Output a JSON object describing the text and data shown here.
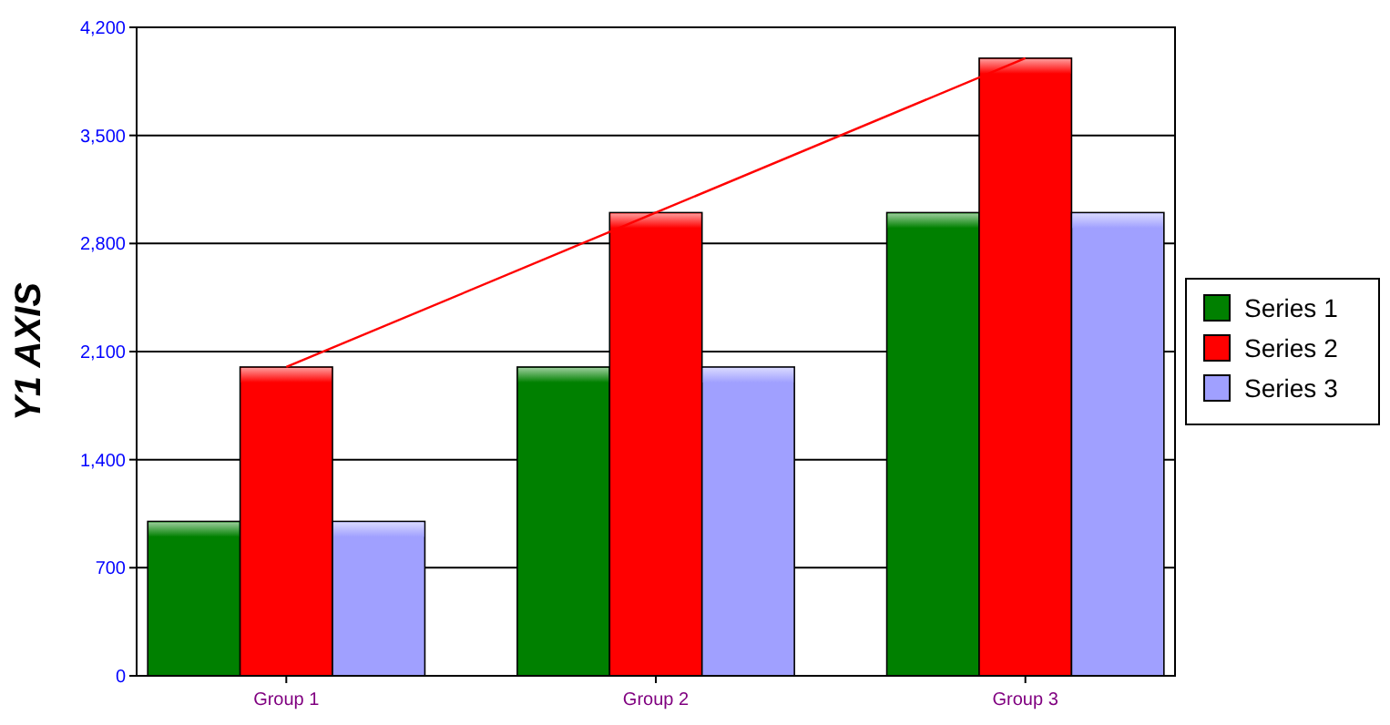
{
  "chart_data": {
    "type": "bar",
    "ylabel": "Y1 AXIS",
    "categories": [
      "Group 1",
      "Group 2",
      "Group 3"
    ],
    "series": [
      {
        "name": "Series 1",
        "color": "#008000",
        "values": [
          1000,
          2000,
          3000
        ]
      },
      {
        "name": "Series 2",
        "color": "#ff0000",
        "values": [
          2000,
          3000,
          4000
        ]
      },
      {
        "name": "Series 3",
        "color": "#a0a0ff",
        "values": [
          1000,
          2000,
          3000
        ]
      },
      {
        "type": "line",
        "color": "#ff0000",
        "values": [
          2000,
          3000,
          4000
        ]
      }
    ],
    "ylim": [
      0,
      4200
    ],
    "yticks": [
      {
        "value": 0,
        "label": "0"
      },
      {
        "value": 700,
        "label": "700"
      },
      {
        "value": 1400,
        "label": "1,400"
      },
      {
        "value": 2100,
        "label": "2,100"
      },
      {
        "value": 2800,
        "label": "2,800"
      },
      {
        "value": 3500,
        "label": "3,500"
      },
      {
        "value": 4200,
        "label": "4,200"
      }
    ],
    "grid": "y",
    "legend": "right"
  }
}
